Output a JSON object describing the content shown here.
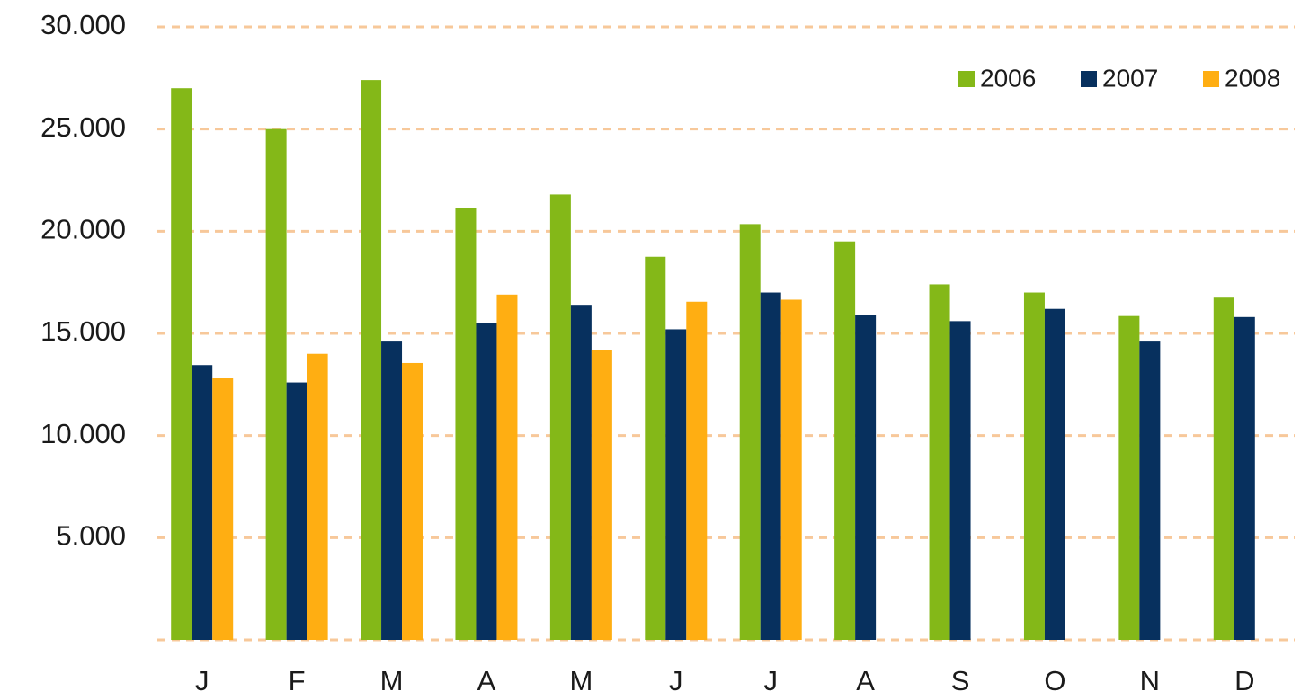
{
  "chart_data": {
    "type": "bar",
    "categories": [
      "J",
      "F",
      "M",
      "A",
      "M",
      "J",
      "J",
      "A",
      "S",
      "O",
      "N",
      "D"
    ],
    "series": [
      {
        "name": "2006",
        "color": "#84b818",
        "values": [
          27000,
          25000,
          27400,
          21150,
          21800,
          18750,
          20350,
          19500,
          17400,
          17000,
          15850,
          16750
        ]
      },
      {
        "name": "2007",
        "color": "#07305e",
        "values": [
          13450,
          12600,
          14600,
          15500,
          16400,
          15200,
          17000,
          15900,
          15600,
          16200,
          14600,
          15800
        ]
      },
      {
        "name": "2008",
        "color": "#ffae12",
        "values": [
          12800,
          14000,
          13550,
          16900,
          14200,
          16550,
          16650,
          null,
          null,
          null,
          null,
          null
        ]
      }
    ],
    "ylim": [
      0,
      30000
    ],
    "yticks": [
      {
        "value": 5000,
        "label": "5.000"
      },
      {
        "value": 10000,
        "label": "10.000"
      },
      {
        "value": 15000,
        "label": "15.000"
      },
      {
        "value": 20000,
        "label": "20.000"
      },
      {
        "value": 25000,
        "label": "25.000"
      },
      {
        "value": 30000,
        "label": "30.000"
      }
    ],
    "grid": true,
    "legend": "top-right"
  }
}
